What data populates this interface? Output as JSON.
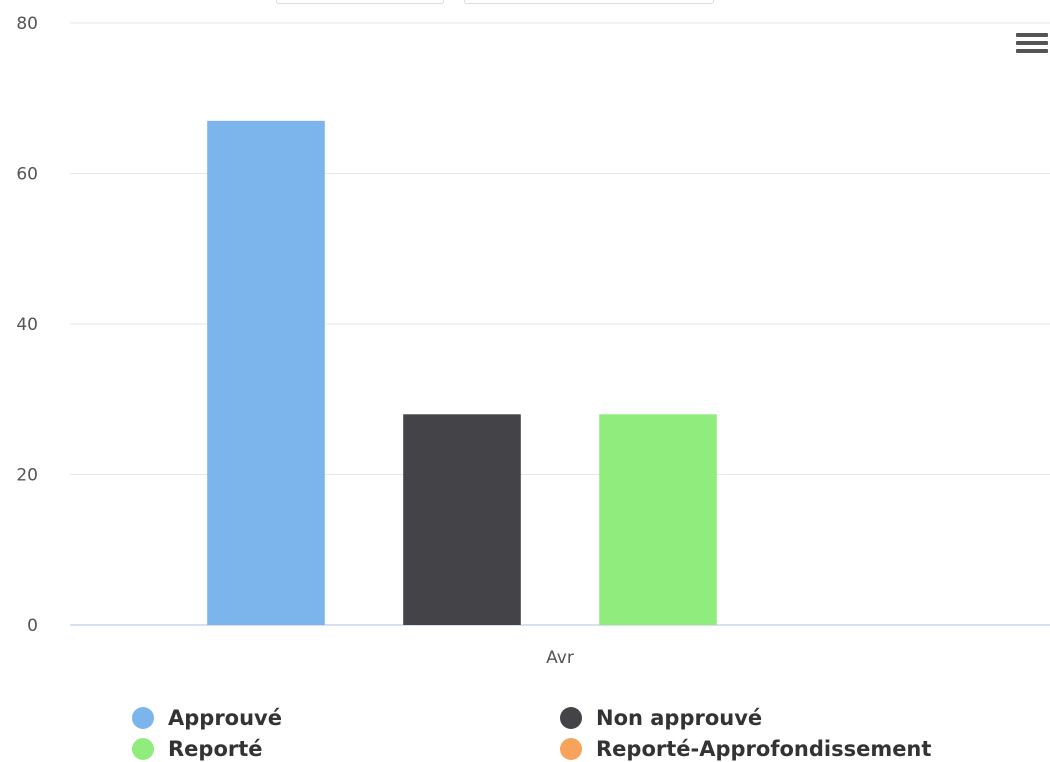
{
  "chart_data": {
    "type": "bar",
    "title": "",
    "xlabel": "",
    "ylabel": "",
    "categories": [
      "Avr"
    ],
    "ylim": [
      0,
      80
    ],
    "yticks": [
      "0",
      "20",
      "40",
      "60",
      "80"
    ],
    "grid": true,
    "legend_placement": "bottom",
    "series": [
      {
        "name": "Approuvé",
        "color": "#7cb5ec",
        "values": [
          67
        ]
      },
      {
        "name": "Non approuvé",
        "color": "#434348",
        "values": [
          28
        ]
      },
      {
        "name": "Reporté",
        "color": "#90ed7d",
        "values": [
          28
        ]
      },
      {
        "name": "Reporté-Approfondissement",
        "color": "#f7a35c",
        "values": [
          0
        ]
      }
    ]
  },
  "menu": {
    "icon": "hamburger-menu-icon"
  }
}
